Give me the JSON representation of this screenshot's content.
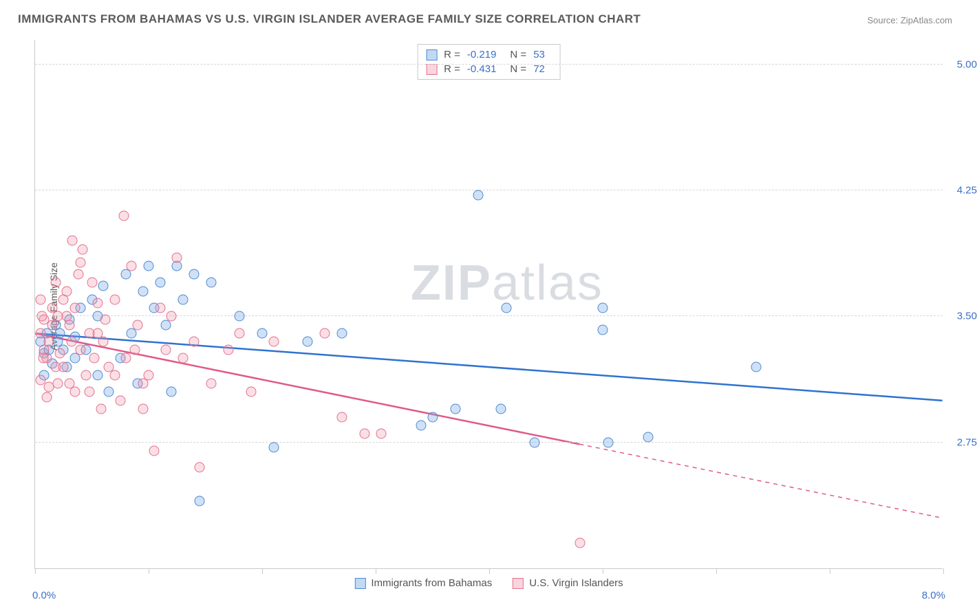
{
  "title": "IMMIGRANTS FROM BAHAMAS VS U.S. VIRGIN ISLANDER AVERAGE FAMILY SIZE CORRELATION CHART",
  "source": "Source: ZipAtlas.com",
  "watermark_a": "ZIP",
  "watermark_b": "atlas",
  "yaxis": {
    "label": "Average Family Size",
    "min": 2.0,
    "max": 5.15,
    "ticks": [
      2.75,
      3.5,
      4.25,
      5.0
    ],
    "tick_labels": [
      "2.75",
      "3.50",
      "4.25",
      "5.00"
    ],
    "label_color": "#3b6fc9",
    "grid_color": "#d6d6d6"
  },
  "xaxis": {
    "min": 0.0,
    "max": 8.0,
    "label_left": "0.0%",
    "label_right": "8.0%",
    "tick_positions": [
      0,
      1,
      2,
      3,
      4,
      5,
      6,
      7,
      8
    ],
    "label_color": "#3b6fc9"
  },
  "series": [
    {
      "name": "Immigrants from Bahamas",
      "key": "blue",
      "color_fill": "rgba(120,170,230,0.35)",
      "color_stroke": "#4a8ad4",
      "trend_color": "#2f72d0",
      "R": "-0.219",
      "N": "53",
      "trend": {
        "x1": 0.0,
        "y1": 3.4,
        "x2": 8.0,
        "y2": 3.0,
        "solid_until_x": 8.0
      },
      "points": [
        [
          0.05,
          3.35
        ],
        [
          0.08,
          3.28
        ],
        [
          0.1,
          3.4
        ],
        [
          0.12,
          3.3
        ],
        [
          0.15,
          3.22
        ],
        [
          0.18,
          3.45
        ],
        [
          0.2,
          3.35
        ],
        [
          0.22,
          3.4
        ],
        [
          0.25,
          3.3
        ],
        [
          0.28,
          3.2
        ],
        [
          0.3,
          3.48
        ],
        [
          0.35,
          3.38
        ],
        [
          0.4,
          3.55
        ],
        [
          0.45,
          3.3
        ],
        [
          0.5,
          3.6
        ],
        [
          0.55,
          3.5
        ],
        [
          0.6,
          3.68
        ],
        [
          0.65,
          3.05
        ],
        [
          0.8,
          3.75
        ],
        [
          0.85,
          3.4
        ],
        [
          0.9,
          3.1
        ],
        [
          1.0,
          3.8
        ],
        [
          1.05,
          3.55
        ],
        [
          1.1,
          3.7
        ],
        [
          1.2,
          3.05
        ],
        [
          1.25,
          3.8
        ],
        [
          1.3,
          3.6
        ],
        [
          1.4,
          3.75
        ],
        [
          1.45,
          2.4
        ],
        [
          1.55,
          3.7
        ],
        [
          1.8,
          3.5
        ],
        [
          2.0,
          3.4
        ],
        [
          2.1,
          2.72
        ],
        [
          2.4,
          3.35
        ],
        [
          2.7,
          3.4
        ],
        [
          3.4,
          2.85
        ],
        [
          3.5,
          2.9
        ],
        [
          3.7,
          2.95
        ],
        [
          3.9,
          4.22
        ],
        [
          4.1,
          2.95
        ],
        [
          4.4,
          2.75
        ],
        [
          5.0,
          3.55
        ],
        [
          5.0,
          3.42
        ],
        [
          5.05,
          2.75
        ],
        [
          5.4,
          2.78
        ],
        [
          6.35,
          3.2
        ],
        [
          4.15,
          3.55
        ],
        [
          0.75,
          3.25
        ],
        [
          0.95,
          3.65
        ],
        [
          0.35,
          3.25
        ],
        [
          0.55,
          3.15
        ],
        [
          1.15,
          3.45
        ],
        [
          0.08,
          3.15
        ]
      ]
    },
    {
      "name": "U.S. Virgin Islanders",
      "key": "pink",
      "color_fill": "rgba(240,150,170,0.30)",
      "color_stroke": "#e46f8f",
      "trend_color": "#e05a86",
      "R": "-0.431",
      "N": "72",
      "trend": {
        "x1": 0.0,
        "y1": 3.4,
        "x2": 8.0,
        "y2": 2.3,
        "solid_until_x": 4.8
      },
      "points": [
        [
          0.05,
          3.4
        ],
        [
          0.08,
          3.3
        ],
        [
          0.1,
          3.25
        ],
        [
          0.12,
          3.35
        ],
        [
          0.15,
          3.45
        ],
        [
          0.18,
          3.2
        ],
        [
          0.2,
          3.5
        ],
        [
          0.22,
          3.28
        ],
        [
          0.25,
          3.6
        ],
        [
          0.28,
          3.65
        ],
        [
          0.3,
          3.1
        ],
        [
          0.32,
          3.35
        ],
        [
          0.35,
          3.55
        ],
        [
          0.38,
          3.75
        ],
        [
          0.4,
          3.3
        ],
        [
          0.42,
          3.9
        ],
        [
          0.45,
          3.15
        ],
        [
          0.48,
          3.05
        ],
        [
          0.5,
          3.7
        ],
        [
          0.55,
          3.4
        ],
        [
          0.58,
          2.95
        ],
        [
          0.6,
          3.35
        ],
        [
          0.65,
          3.2
        ],
        [
          0.7,
          3.6
        ],
        [
          0.75,
          3.0
        ],
        [
          0.78,
          4.1
        ],
        [
          0.8,
          3.25
        ],
        [
          0.85,
          3.8
        ],
        [
          0.9,
          3.45
        ],
        [
          0.95,
          2.95
        ],
        [
          1.0,
          3.15
        ],
        [
          1.05,
          2.7
        ],
        [
          1.1,
          3.55
        ],
        [
          1.15,
          3.3
        ],
        [
          1.25,
          3.85
        ],
        [
          1.3,
          3.25
        ],
        [
          1.4,
          3.35
        ],
        [
          1.45,
          2.6
        ],
        [
          1.55,
          3.1
        ],
        [
          1.7,
          3.3
        ],
        [
          1.8,
          3.4
        ],
        [
          1.9,
          3.05
        ],
        [
          2.1,
          3.35
        ],
        [
          2.55,
          3.4
        ],
        [
          2.7,
          2.9
        ],
        [
          2.9,
          2.8
        ],
        [
          3.05,
          2.8
        ],
        [
          4.8,
          2.15
        ],
        [
          0.15,
          3.55
        ],
        [
          0.2,
          3.1
        ],
        [
          0.3,
          3.45
        ],
        [
          0.4,
          3.82
        ],
        [
          0.52,
          3.25
        ],
        [
          0.62,
          3.48
        ],
        [
          0.33,
          3.95
        ],
        [
          0.05,
          3.12
        ],
        [
          0.08,
          3.48
        ],
        [
          0.12,
          3.08
        ],
        [
          0.18,
          3.7
        ],
        [
          0.25,
          3.2
        ],
        [
          0.28,
          3.5
        ],
        [
          0.35,
          3.05
        ],
        [
          0.48,
          3.4
        ],
        [
          0.55,
          3.58
        ],
        [
          0.7,
          3.15
        ],
        [
          0.88,
          3.3
        ],
        [
          0.95,
          3.1
        ],
        [
          1.2,
          3.5
        ],
        [
          0.05,
          3.6
        ],
        [
          0.1,
          3.02
        ],
        [
          0.07,
          3.25
        ],
        [
          0.06,
          3.5
        ]
      ]
    }
  ],
  "legend_top": {
    "r_label": "R =",
    "n_label": "N ="
  },
  "legend_bottom_labels": [
    "Immigrants from Bahamas",
    "U.S. Virgin Islanders"
  ]
}
